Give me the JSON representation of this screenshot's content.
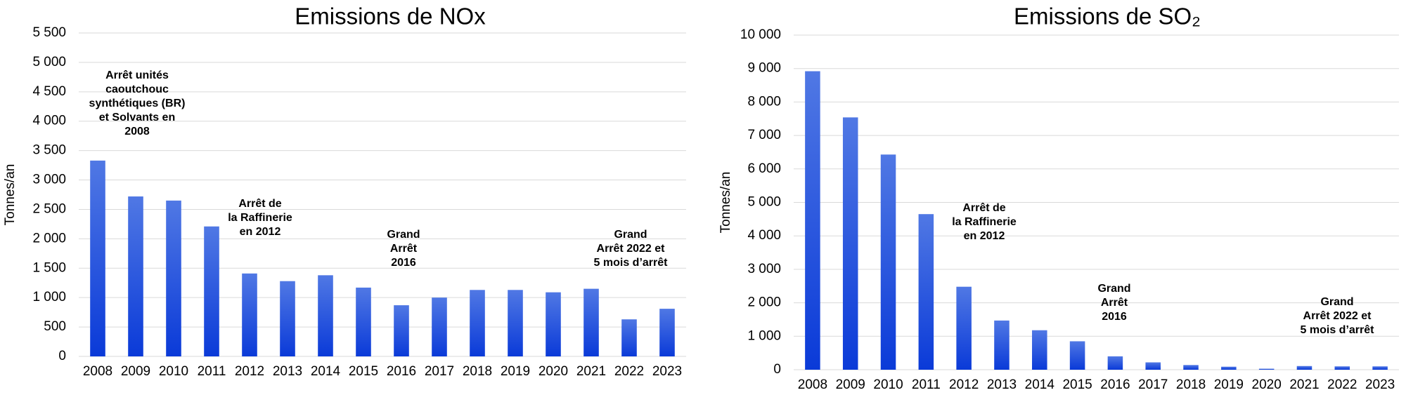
{
  "chart_data": [
    {
      "type": "bar",
      "title": "Emissions de NOx",
      "y_label": "Tonnes/an",
      "color": "#0a3ad8",
      "grid": true,
      "categories": [
        "2008",
        "2009",
        "2010",
        "2011",
        "2012",
        "2013",
        "2014",
        "2015",
        "2016",
        "2017",
        "2018",
        "2019",
        "2020",
        "2021",
        "2022",
        "2023"
      ],
      "values": [
        3330,
        2720,
        2650,
        2210,
        1410,
        1280,
        1380,
        1170,
        870,
        1000,
        1130,
        1130,
        1090,
        1150,
        630,
        810
      ],
      "ylim": [
        0,
        5500
      ],
      "yticks": [
        0,
        500,
        {
          "value": 1000,
          "label": "1 000"
        },
        {
          "value": 1500,
          "label": "1 500"
        },
        {
          "value": 2000,
          "label": "2 000"
        },
        {
          "value": 2500,
          "label": "2 500"
        },
        {
          "value": 3000,
          "label": "3 000"
        },
        {
          "value": 3500,
          "label": "3 500"
        },
        {
          "value": 4000,
          "label": "4 000"
        },
        {
          "value": 4500,
          "label": "4 500"
        },
        {
          "value": 5000,
          "label": "5 000"
        },
        {
          "value": 5500,
          "label": "5 500"
        }
      ],
      "annotations": [
        [
          "Arrêt unités",
          "caoutchouc",
          "synthétiques (BR)",
          "et Solvants en",
          "2008"
        ],
        [
          "Arrêt de",
          "la Raffinerie",
          "en 2012"
        ],
        [
          "Grand",
          "Arrêt",
          "2016"
        ],
        [
          "Grand",
          "Arrêt 2022 et",
          "5 mois d’arrêt"
        ]
      ]
    },
    {
      "type": "bar",
      "title": "Emissions de SO₂",
      "y_label": "Tonnes/an",
      "color": "#0a3ad8",
      "grid": true,
      "categories": [
        "2008",
        "2009",
        "2010",
        "2011",
        "2012",
        "2013",
        "2014",
        "2015",
        "2016",
        "2017",
        "2018",
        "2019",
        "2020",
        "2021",
        "2022",
        "2023"
      ],
      "values": [
        8920,
        7540,
        6430,
        4650,
        2480,
        1470,
        1180,
        850,
        400,
        220,
        140,
        90,
        30,
        110,
        100,
        100
      ],
      "ylim": [
        0,
        10000
      ],
      "yticks": [
        0,
        {
          "value": 1000,
          "label": "1 000"
        },
        {
          "value": 2000,
          "label": "2 000"
        },
        {
          "value": 3000,
          "label": "3 000"
        },
        {
          "value": 4000,
          "label": "4 000"
        },
        {
          "value": 5000,
          "label": "5 000"
        },
        {
          "value": 6000,
          "label": "6 000"
        },
        {
          "value": 7000,
          "label": "7 000"
        },
        {
          "value": 8000,
          "label": "8 000"
        },
        {
          "value": 9000,
          "label": "9 000"
        },
        {
          "value": 10000,
          "label": "10 000"
        }
      ],
      "annotations": [
        [
          "Arrêt de",
          "la Raffinerie",
          "en 2012"
        ],
        [
          "Grand",
          "Arrêt",
          "2016"
        ],
        [
          "Grand",
          "Arrêt 2022 et",
          "5 mois d’arrêt"
        ]
      ]
    }
  ]
}
